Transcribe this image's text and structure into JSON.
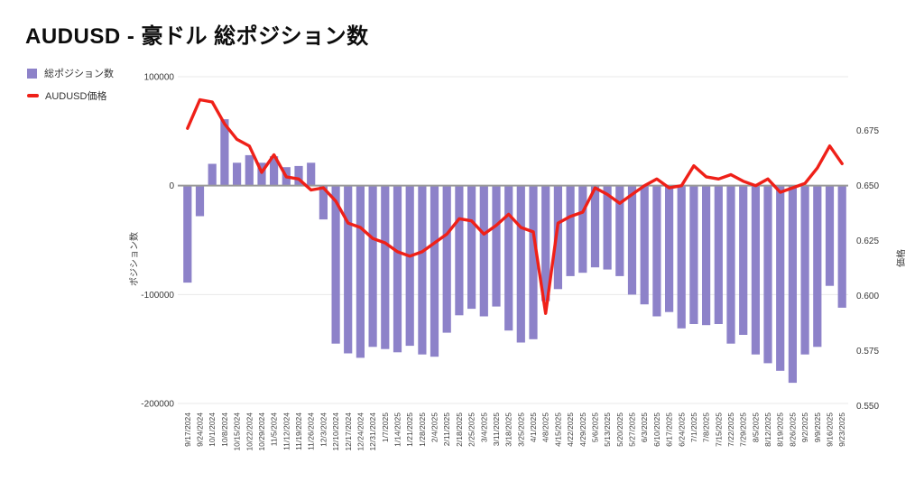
{
  "title": "AUDUSD - 豪ドル 総ポジション数",
  "legend": [
    {
      "label": "総ポジション数",
      "marker": "square-icon",
      "color": "#8d82c9"
    },
    {
      "label": "AUDUSD価格",
      "marker": "dash-icon",
      "color": "#ef2018"
    }
  ],
  "axes": {
    "left": {
      "title": "ポジション数",
      "ticks": [
        100000,
        0,
        -100000,
        -200000
      ]
    },
    "right": {
      "title": "価格",
      "ticks": [
        0.675,
        0.65,
        0.625,
        0.6,
        0.575,
        0.55
      ]
    }
  },
  "colors": {
    "bar": "#8d82c9",
    "line": "#ef2018",
    "grid": "#e8e8e8",
    "zero_line": "#9a9a9a",
    "tick_text": "#383838",
    "date_text": "#3c3c3c"
  },
  "chart_data": {
    "type": "bar",
    "subtype": "bar-with-line-overlay",
    "title": "AUDUSD - 豪ドル 総ポジション数",
    "categories": [
      "9/17/2024",
      "9/24/2024",
      "10/1/2024",
      "10/8/2024",
      "10/15/2024",
      "10/22/2024",
      "10/29/2024",
      "11/5/2024",
      "11/12/2024",
      "11/19/2024",
      "11/26/2024",
      "12/3/2024",
      "12/10/2024",
      "12/17/2024",
      "12/24/2024",
      "12/31/2024",
      "1/7/2025",
      "1/14/2025",
      "1/21/2025",
      "1/28/2025",
      "2/4/2025",
      "2/11/2025",
      "2/18/2025",
      "2/25/2025",
      "3/4/2025",
      "3/11/2025",
      "3/18/2025",
      "3/25/2025",
      "4/1/2025",
      "4/8/2025",
      "4/15/2025",
      "4/22/2025",
      "4/29/2025",
      "5/6/2025",
      "5/13/2025",
      "5/20/2025",
      "5/27/2025",
      "6/3/2025",
      "6/10/2025",
      "6/17/2025",
      "6/24/2025",
      "7/1/2025",
      "7/8/2025",
      "7/15/2025",
      "7/22/2025",
      "7/29/2025",
      "8/5/2025",
      "8/12/2025",
      "8/19/2025",
      "8/26/2025",
      "9/2/2025",
      "9/9/2025",
      "9/16/2025",
      "9/23/2025"
    ],
    "series": [
      {
        "name": "総ポジション数",
        "type": "bar",
        "axis": "left",
        "color": "#8d82c9",
        "values": [
          -89000,
          -28000,
          20000,
          61000,
          21000,
          28000,
          21000,
          27000,
          17000,
          18000,
          21000,
          -31000,
          -145000,
          -154000,
          -158000,
          -148000,
          -150000,
          -153000,
          -147000,
          -155000,
          -157000,
          -135000,
          -119000,
          -113000,
          -120000,
          -111000,
          -133000,
          -144000,
          -141000,
          -106000,
          -95000,
          -83000,
          -80000,
          -75000,
          -77000,
          -83000,
          -100000,
          -109000,
          -120000,
          -116000,
          -131000,
          -127000,
          -128000,
          -127000,
          -145000,
          -137000,
          -155000,
          -163000,
          -170000,
          -181000,
          -155000,
          -148000,
          -92000,
          -112000
        ]
      },
      {
        "name": "AUDUSD価格",
        "type": "line",
        "axis": "right",
        "color": "#ef2018",
        "values": [
          0.676,
          0.689,
          0.688,
          0.678,
          0.671,
          0.668,
          0.656,
          0.664,
          0.654,
          0.653,
          0.648,
          0.649,
          0.643,
          0.633,
          0.631,
          0.626,
          0.624,
          0.62,
          0.618,
          0.62,
          0.624,
          0.628,
          0.635,
          0.634,
          0.628,
          0.632,
          0.637,
          0.631,
          0.629,
          0.592,
          0.633,
          0.636,
          0.638,
          0.649,
          0.646,
          0.642,
          0.646,
          0.65,
          0.653,
          0.649,
          0.65,
          0.659,
          0.654,
          0.653,
          0.655,
          0.652,
          0.65,
          0.653,
          0.647,
          0.649,
          0.651,
          0.658,
          0.668,
          0.66
        ]
      }
    ],
    "left_axis": {
      "label": "ポジション数",
      "range": [
        -200000,
        100000
      ],
      "tick_step": 100000
    },
    "right_axis": {
      "label": "価格",
      "range": [
        0.55,
        0.675
      ],
      "tick_step": 0.025
    },
    "grid": "horizontal-only",
    "legend_position": "top-left",
    "x_tick_rotation": -90
  }
}
